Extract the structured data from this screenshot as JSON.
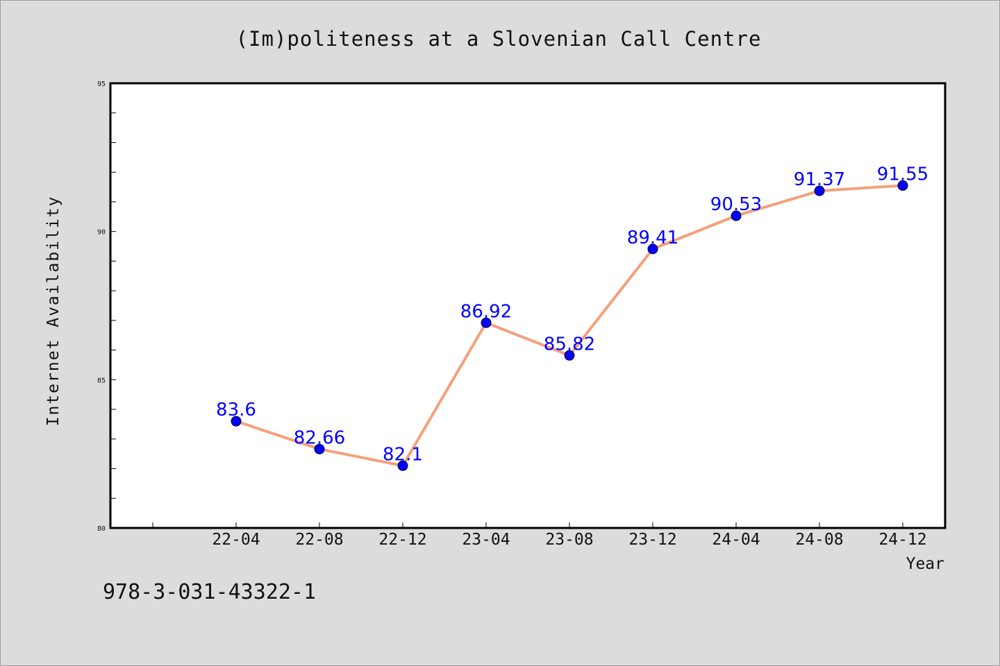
{
  "chart_data": {
    "type": "line",
    "title": "(Im)politeness at a Slovenian Call Centre",
    "xlabel": "Year",
    "ylabel": "Internet Availability",
    "categories": [
      "22-04",
      "22-08",
      "22-12",
      "23-04",
      "23-08",
      "23-12",
      "24-04",
      "24-08",
      "24-12"
    ],
    "series": [
      {
        "values": [
          83.6,
          82.66,
          82.1,
          86.92,
          85.82,
          89.41,
          90.53,
          91.37,
          91.55
        ],
        "labels": [
          "83.6",
          "82.66",
          "82.1",
          "86.92",
          "85.82",
          "89.41",
          "90.53",
          "91.37",
          "91.55"
        ],
        "line_color": "#f4a07a",
        "marker_color": "#0000ff"
      }
    ],
    "ylim": [
      80,
      95
    ],
    "yticks": [
      "80",
      "85",
      "90",
      "95"
    ],
    "label_color": "#0000ff",
    "grid": false,
    "legend": "none"
  },
  "footer": {
    "isbn": "978-3-031-43322-1"
  }
}
